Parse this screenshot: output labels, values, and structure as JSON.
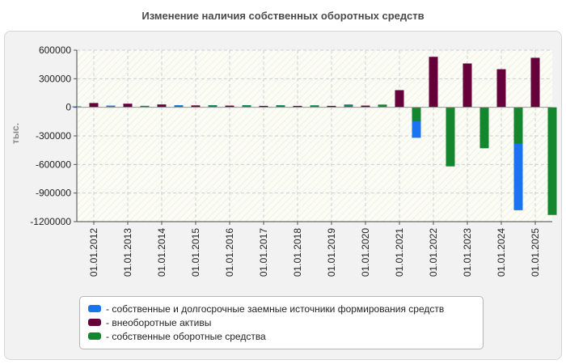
{
  "chart_data": {
    "type": "bar",
    "title": "Изменение наличия собственных оборотных средств",
    "xlabel": "",
    "ylabel": "тыс.",
    "ylim": [
      -1200000,
      600000
    ],
    "yticks": [
      600000,
      300000,
      0,
      -300000,
      -600000,
      -900000,
      -1200000
    ],
    "ytick_labels": [
      "600000",
      "300000",
      "0",
      "-300000",
      "-600000",
      "-900000",
      "-1200000"
    ],
    "categories": [
      "01.01.2012",
      "01.01.2013",
      "01.01.2014",
      "01.01.2015",
      "01.01.2016",
      "01.01.2017",
      "01.01.2018",
      "01.01.2019",
      "01.01.2020",
      "01.01.2021",
      "01.01.2022",
      "01.01.2023",
      "01.01.2024",
      "01.01.2025"
    ],
    "series": [
      {
        "name": "собственные и долгосрочные заемные источники формирования средств",
        "color": "#1a73f0",
        "values": [
          10000,
          18000,
          15000,
          22000,
          22000,
          22000,
          22000,
          20000,
          30000,
          28000,
          -320000,
          -260000,
          -280000,
          -1080000
        ]
      },
      {
        "name": "внеоборотные активы",
        "color": "#66003a",
        "values": [
          45000,
          38000,
          30000,
          20000,
          18000,
          15000,
          15000,
          15000,
          18000,
          180000,
          530000,
          460000,
          400000,
          520000
        ]
      },
      {
        "name": "собственные оборотные средства",
        "color": "#14872e",
        "values": [
          5000,
          15000,
          15000,
          20000,
          20000,
          20000,
          20000,
          20000,
          28000,
          -145000,
          -620000,
          -430000,
          -380000,
          -1130000
        ]
      }
    ],
    "grid": true,
    "legend_position": "bottom"
  }
}
